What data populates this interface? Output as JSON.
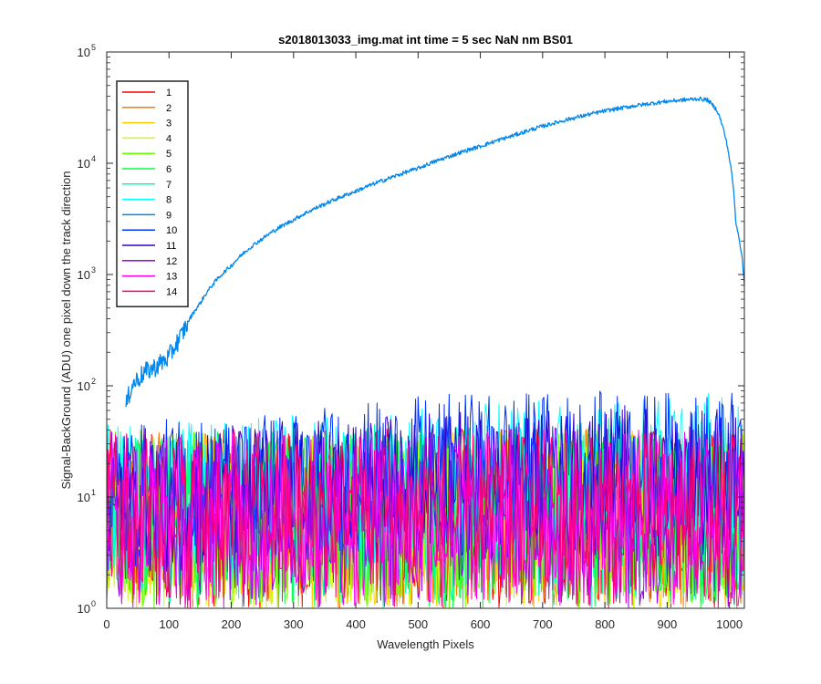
{
  "chart_data": {
    "type": "line",
    "title": "s2018013033_img.mat int time = 5 sec  NaN nm BS01",
    "xlabel": "Wavelength Pixels",
    "ylabel": "Signal-BackGround (ADU) one pixel down the track direction",
    "xlim": [
      0,
      1024
    ],
    "ylim": [
      1,
      100000
    ],
    "yscale": "log",
    "grid": false,
    "legend_position": "top-left",
    "x_ticks": [
      0,
      100,
      200,
      300,
      400,
      500,
      600,
      700,
      800,
      900,
      1000
    ],
    "y_ticks": [
      {
        "value": 1,
        "base": "10",
        "exp": "0"
      },
      {
        "value": 10,
        "base": "10",
        "exp": "1"
      },
      {
        "value": 100,
        "base": "10",
        "exp": "2"
      },
      {
        "value": 1000,
        "base": "10",
        "exp": "3"
      },
      {
        "value": 10000,
        "base": "10",
        "exp": "4"
      },
      {
        "value": 100000,
        "base": "10",
        "exp": "5"
      }
    ],
    "series": [
      {
        "name": "1",
        "color": "#ff0000",
        "kind": "noise",
        "x": [
          0,
          1024
        ],
        "low": [
          1,
          1
        ],
        "high": [
          40,
          45
        ]
      },
      {
        "name": "2",
        "color": "#ff7700",
        "kind": "noise",
        "x": [
          0,
          1024
        ],
        "low": [
          1,
          1
        ],
        "high": [
          38,
          42
        ]
      },
      {
        "name": "3",
        "color": "#ffcc00",
        "kind": "noise",
        "x": [
          0,
          1024
        ],
        "low": [
          1,
          1
        ],
        "high": [
          40,
          40
        ]
      },
      {
        "name": "4",
        "color": "#ccff00",
        "kind": "noise",
        "x": [
          0,
          1024
        ],
        "low": [
          1,
          1
        ],
        "high": [
          38,
          40
        ]
      },
      {
        "name": "5",
        "color": "#66ff00",
        "kind": "noise",
        "x": [
          0,
          1024
        ],
        "low": [
          1,
          1
        ],
        "high": [
          40,
          42
        ]
      },
      {
        "name": "6",
        "color": "#00ff44",
        "kind": "noise",
        "x": [
          0,
          1024
        ],
        "low": [
          1,
          1
        ],
        "high": [
          38,
          45
        ]
      },
      {
        "name": "7",
        "color": "#00ffaa",
        "kind": "noise",
        "x": [
          0,
          1024
        ],
        "low": [
          1,
          1
        ],
        "high": [
          40,
          55
        ]
      },
      {
        "name": "8",
        "color": "#00ffff",
        "kind": "noise",
        "x": [
          0,
          1024
        ],
        "low": [
          2,
          3
        ],
        "high": [
          45,
          90
        ]
      },
      {
        "name": "9",
        "color": "#0088ee",
        "kind": "line",
        "x": [
          30,
          40,
          60,
          80,
          100,
          120,
          150,
          200,
          250,
          300,
          350,
          400,
          450,
          500,
          550,
          600,
          650,
          700,
          750,
          800,
          850,
          900,
          950,
          965,
          980,
          1000,
          1010,
          1024
        ],
        "y": [
          60,
          100,
          130,
          150,
          180,
          280,
          550,
          1200,
          2100,
          3100,
          4300,
          5600,
          7200,
          9000,
          11500,
          14200,
          17500,
          21500,
          25500,
          29500,
          33000,
          36000,
          38000,
          37000,
          30000,
          11000,
          3000,
          800
        ]
      },
      {
        "name": "10",
        "color": "#0033ff",
        "kind": "noise",
        "x": [
          0,
          400,
          600,
          1024
        ],
        "low": [
          2,
          3,
          4,
          4
        ],
        "high": [
          45,
          70,
          90,
          90
        ]
      },
      {
        "name": "11",
        "color": "#3300cc",
        "kind": "noise",
        "x": [
          0,
          1024
        ],
        "low": [
          2,
          3
        ],
        "high": [
          40,
          75
        ]
      },
      {
        "name": "12",
        "color": "#9900ee",
        "kind": "noise",
        "x": [
          0,
          1024
        ],
        "low": [
          1,
          1
        ],
        "high": [
          40,
          45
        ]
      },
      {
        "name": "13",
        "color": "#ff00ee",
        "kind": "noise",
        "x": [
          0,
          1024
        ],
        "low": [
          1,
          1
        ],
        "high": [
          38,
          42
        ]
      },
      {
        "name": "14",
        "color": "#ff0077",
        "kind": "noise",
        "x": [
          0,
          1024
        ],
        "low": [
          1,
          1
        ],
        "high": [
          40,
          42
        ]
      }
    ]
  }
}
